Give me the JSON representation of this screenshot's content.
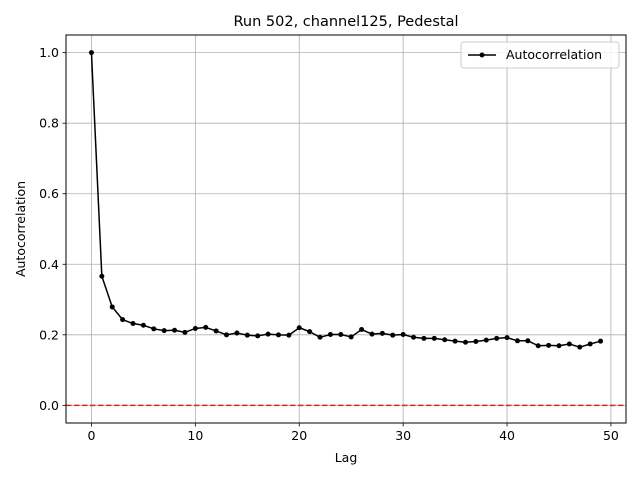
{
  "chart_data": {
    "type": "line",
    "title": "Run 502, channel125, Pedestal",
    "xlabel": "Lag",
    "ylabel": "Autocorrelation",
    "xlim": [
      -2.45,
      51.45
    ],
    "ylim": [
      -0.05,
      1.05
    ],
    "xticks": [
      0,
      10,
      20,
      30,
      40,
      50
    ],
    "yticks": [
      0.0,
      0.2,
      0.4,
      0.6,
      0.8,
      1.0
    ],
    "xtick_labels": [
      "0",
      "10",
      "20",
      "30",
      "40",
      "50"
    ],
    "ytick_labels": [
      "0.0",
      "0.2",
      "0.4",
      "0.6",
      "0.8",
      "1.0"
    ],
    "grid": true,
    "legend_position": "top-right",
    "reference_line": {
      "y": 0.0,
      "color": "#d62728",
      "style": "dashed"
    },
    "series": [
      {
        "name": "Autocorrelation",
        "color": "#000000",
        "marker": "dot",
        "x": [
          0,
          1,
          2,
          3,
          4,
          5,
          6,
          7,
          8,
          9,
          10,
          11,
          12,
          13,
          14,
          15,
          16,
          17,
          18,
          19,
          20,
          21,
          22,
          23,
          24,
          25,
          26,
          27,
          28,
          29,
          30,
          31,
          32,
          33,
          34,
          35,
          36,
          37,
          38,
          39,
          40,
          41,
          42,
          43,
          44,
          45,
          46,
          47,
          48,
          49
        ],
        "y": [
          1.0,
          0.366,
          0.279,
          0.243,
          0.232,
          0.227,
          0.217,
          0.212,
          0.213,
          0.207,
          0.218,
          0.221,
          0.211,
          0.2,
          0.205,
          0.199,
          0.197,
          0.202,
          0.2,
          0.199,
          0.22,
          0.209,
          0.193,
          0.201,
          0.201,
          0.194,
          0.215,
          0.202,
          0.204,
          0.199,
          0.201,
          0.193,
          0.19,
          0.19,
          0.186,
          0.182,
          0.179,
          0.181,
          0.185,
          0.19,
          0.192,
          0.183,
          0.183,
          0.169,
          0.17,
          0.169,
          0.174,
          0.165,
          0.174,
          0.182
        ]
      }
    ]
  }
}
